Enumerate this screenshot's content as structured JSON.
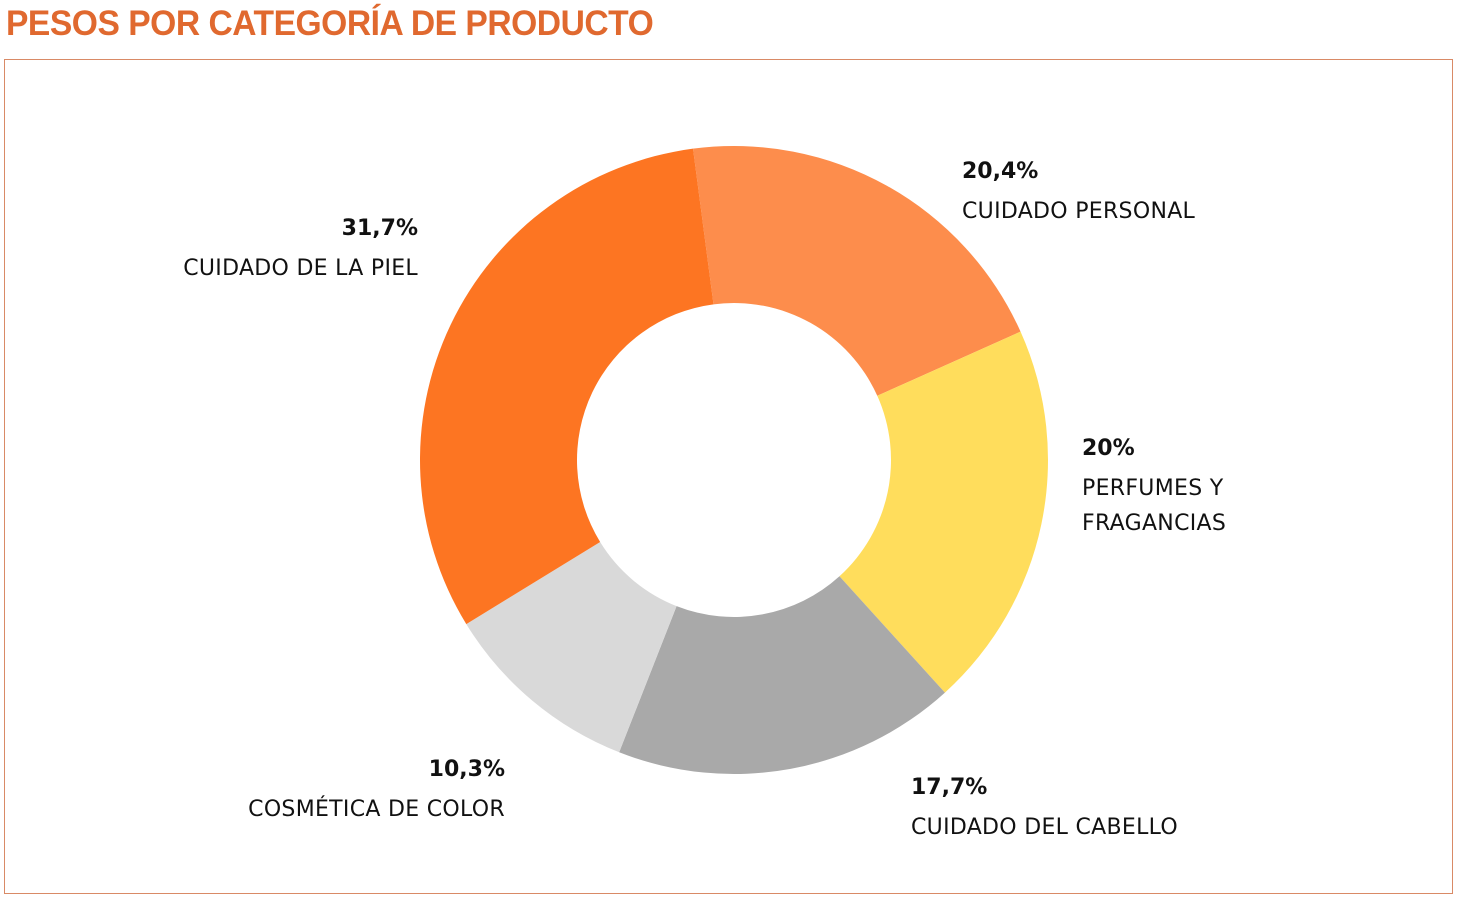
{
  "header": {
    "title": "PESOS POR CATEGORÍA DE PRODUCTO"
  },
  "chart_data": {
    "type": "pie",
    "donut": true,
    "title": "PESOS POR CATEGORÍA DE PRODUCTO",
    "slices": [
      {
        "name": "CUIDADO PERSONAL",
        "value": 20.4,
        "label": "20,4%",
        "color": "#fd8d4c"
      },
      {
        "name": "PERFUMES Y FRAGANCIAS",
        "name_lines": [
          "PERFUMES Y",
          "FRAGANCIAS"
        ],
        "value": 20.0,
        "label": "20%",
        "color": "#ffdd5c"
      },
      {
        "name": "CUIDADO DEL CABELLO",
        "value": 17.7,
        "label": "17,7%",
        "color": "#a9a9a9"
      },
      {
        "name": "COSMÉTICA DE COLOR",
        "value": 10.3,
        "label": "10,3%",
        "color": "#d9d9d9"
      },
      {
        "name": "CUIDADO DE LA PIEL",
        "value": 31.7,
        "label": "31,7%",
        "color": "#fd7522"
      }
    ],
    "legend": "none",
    "grid": false
  },
  "colors": {
    "title": "#e0692f",
    "frame_border": "#d98a66",
    "label_text": "#111111"
  }
}
